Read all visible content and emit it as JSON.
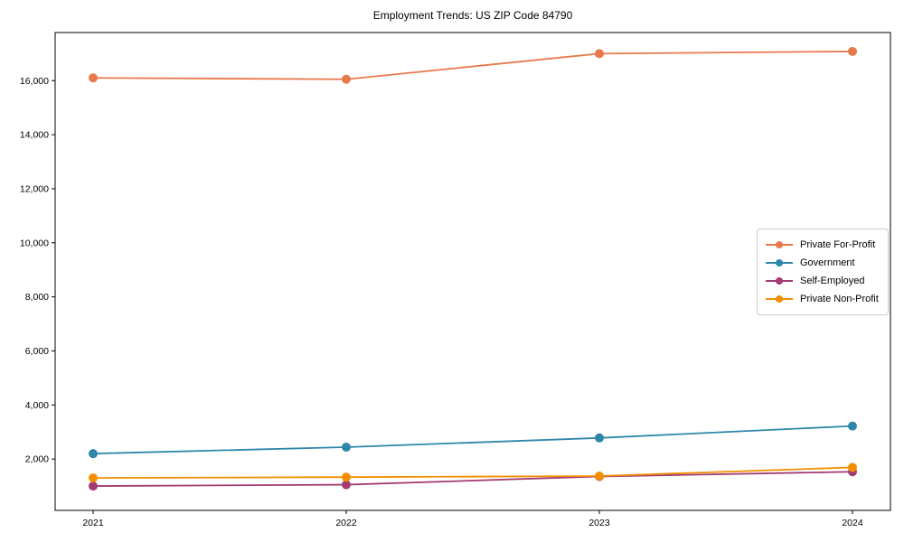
{
  "title": "Employment Trends: US ZIP Code 84790",
  "chart_data": {
    "type": "line",
    "title": "Employment Trends: US ZIP Code 84790",
    "xlabel": "",
    "ylabel": "",
    "categories": [
      "2021",
      "2022",
      "2023",
      "2024"
    ],
    "x": [
      2021,
      2022,
      2023,
      2024
    ],
    "series": [
      {
        "name": "Private For-Profit",
        "color": "#E8794B",
        "values": [
          16100,
          16050,
          17000,
          17080
        ]
      },
      {
        "name": "Government",
        "color": "#2E86AB",
        "values": [
          2200,
          2440,
          2780,
          3220
        ]
      },
      {
        "name": "Self-Employed",
        "color": "#A23B72",
        "values": [
          1000,
          1050,
          1355,
          1530
        ]
      },
      {
        "name": "Private Non-Profit",
        "color": "#F18F01",
        "values": [
          1300,
          1330,
          1370,
          1690
        ]
      }
    ],
    "yticks": [
      2000,
      4000,
      6000,
      8000,
      10000,
      12000,
      14000,
      16000
    ],
    "ytick_labels": [
      "2,000",
      "4,000",
      "6,000",
      "8,000",
      "10,000",
      "12,000",
      "14,000",
      "16,000"
    ],
    "ylim": [
      100,
      17780
    ],
    "xlim": [
      2020.85,
      2024.15
    ],
    "grid": false,
    "legend_position": "center right",
    "axis_color": "#000000",
    "tick_font_size": 10.5,
    "marker_radius": 5,
    "line_width": 1.8
  }
}
